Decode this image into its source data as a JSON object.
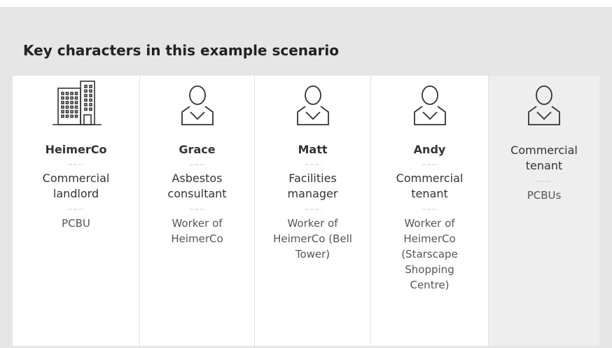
{
  "title": "Key characters in this example scenario",
  "cards": [
    {
      "icon": "building",
      "name": "HeimerCo",
      "role": "Commercial landlord",
      "org": "PCBU"
    },
    {
      "icon": "person",
      "name": "Grace",
      "role": "Asbestos consultant",
      "org": "Worker of HeimerCo"
    },
    {
      "icon": "person",
      "name": "Matt",
      "role": "Facilities manager",
      "org": "Worker of HeimerCo (Bell Tower)"
    },
    {
      "icon": "person",
      "name": "Andy",
      "role": "Commercial tenant",
      "org": "Worker of HeimerCo (Starscape Shopping Centre)"
    },
    {
      "icon": "person",
      "role": "Commercial tenant",
      "org": "PCBUs",
      "shaded": true
    }
  ]
}
